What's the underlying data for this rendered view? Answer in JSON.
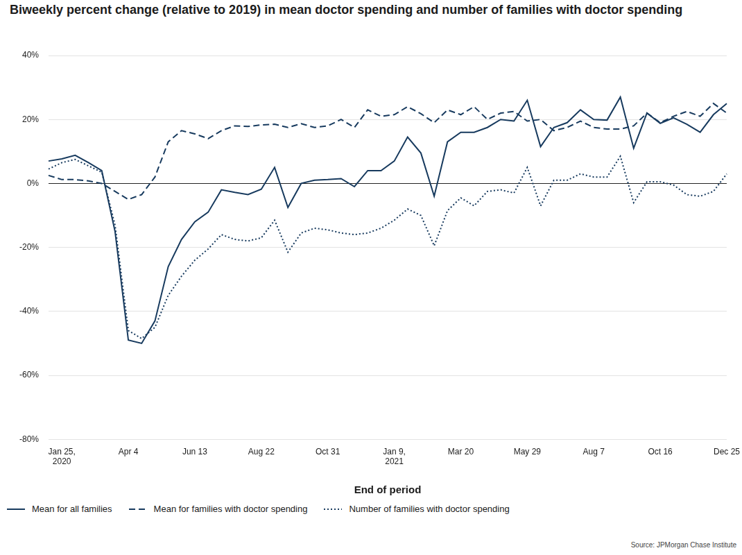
{
  "chart_data": {
    "type": "line",
    "title": "Biweekly percent change (relative to 2019) in mean doctor spending and number of families with doctor spending",
    "x_label": "End of period",
    "source": "Source: JPMorgan Chase Institute",
    "categories": [
      null,
      "Jan 25, 2020",
      null,
      null,
      null,
      null,
      "Apr 4",
      null,
      null,
      null,
      null,
      "Jun 13",
      null,
      null,
      null,
      null,
      "Aug 22",
      null,
      null,
      null,
      null,
      "Oct 31",
      null,
      null,
      null,
      null,
      "Jan 9, 2021",
      null,
      null,
      null,
      null,
      "Mar 20",
      null,
      null,
      null,
      null,
      "May 29",
      null,
      null,
      null,
      null,
      "Aug 7",
      null,
      null,
      null,
      null,
      "Oct 16",
      null,
      null,
      null,
      null,
      "Dec 25"
    ],
    "series": [
      {
        "name": "Mean for all families",
        "color": "#173a5e",
        "line_style": "solid",
        "values": [
          7,
          7.7,
          8.8,
          6.5,
          4,
          -15,
          -49,
          -50,
          -43,
          -26,
          -17.5,
          -12,
          -9,
          -2,
          -2.8,
          -3.5,
          -1.8,
          5,
          -7.5,
          0,
          1,
          1.2,
          1.5,
          -1,
          4,
          4,
          7,
          14.5,
          9.5,
          -4,
          13,
          16,
          16,
          17.5,
          20,
          19.5,
          26,
          11.5,
          17.5,
          19,
          23,
          20,
          19.8,
          27,
          11,
          22,
          18.8,
          20.5,
          18.5,
          16,
          21.5,
          25
        ]
      },
      {
        "name": "Mean for families with doctor spending",
        "color": "#173a5e",
        "line_style": "dashed",
        "values": [
          2.5,
          1.2,
          1.2,
          0.8,
          0,
          -2.5,
          -5,
          -3.5,
          2,
          13,
          16.5,
          15.5,
          14,
          16.5,
          18,
          17.8,
          18.3,
          18.5,
          17.5,
          18.7,
          17.5,
          18,
          20,
          17.5,
          23,
          21,
          21.5,
          24,
          21.8,
          19,
          23,
          21.5,
          24,
          20,
          22,
          22.5,
          19.5,
          20,
          16.5,
          17.5,
          19.5,
          17.5,
          17,
          17,
          18,
          22,
          19,
          21,
          22.5,
          21,
          25,
          22
        ]
      },
      {
        "name": "Number of families with doctor spending",
        "color": "#173a5e",
        "line_style": "dotted",
        "values": [
          4.5,
          6.5,
          7.5,
          5.5,
          3.5,
          -13,
          -46,
          -48.5,
          -45,
          -35,
          -29,
          -24,
          -20.5,
          -16,
          -17.5,
          -18,
          -17,
          -11.5,
          -21.5,
          -15.5,
          -14,
          -14.5,
          -15.5,
          -16,
          -15.5,
          -14,
          -11.5,
          -8,
          -10,
          -19.5,
          -8.5,
          -4.5,
          -7,
          -2.5,
          -2,
          -3,
          5,
          -7,
          1,
          1,
          3,
          2,
          2,
          8.5,
          -6,
          0.5,
          0.5,
          -0.5,
          -3.5,
          -4,
          -2.5,
          3
        ]
      }
    ],
    "ylim": [
      -80,
      40
    ],
    "yticks": [
      {
        "value": -80,
        "label": "-80%"
      },
      {
        "value": -60,
        "label": "-60%"
      },
      {
        "value": -40,
        "label": "-40%"
      },
      {
        "value": -20,
        "label": "-20%"
      },
      {
        "value": 0,
        "label": "0%"
      },
      {
        "value": 20,
        "label": "20%"
      },
      {
        "value": 40,
        "label": "40%"
      }
    ],
    "grid": true,
    "legend": "bottom"
  }
}
